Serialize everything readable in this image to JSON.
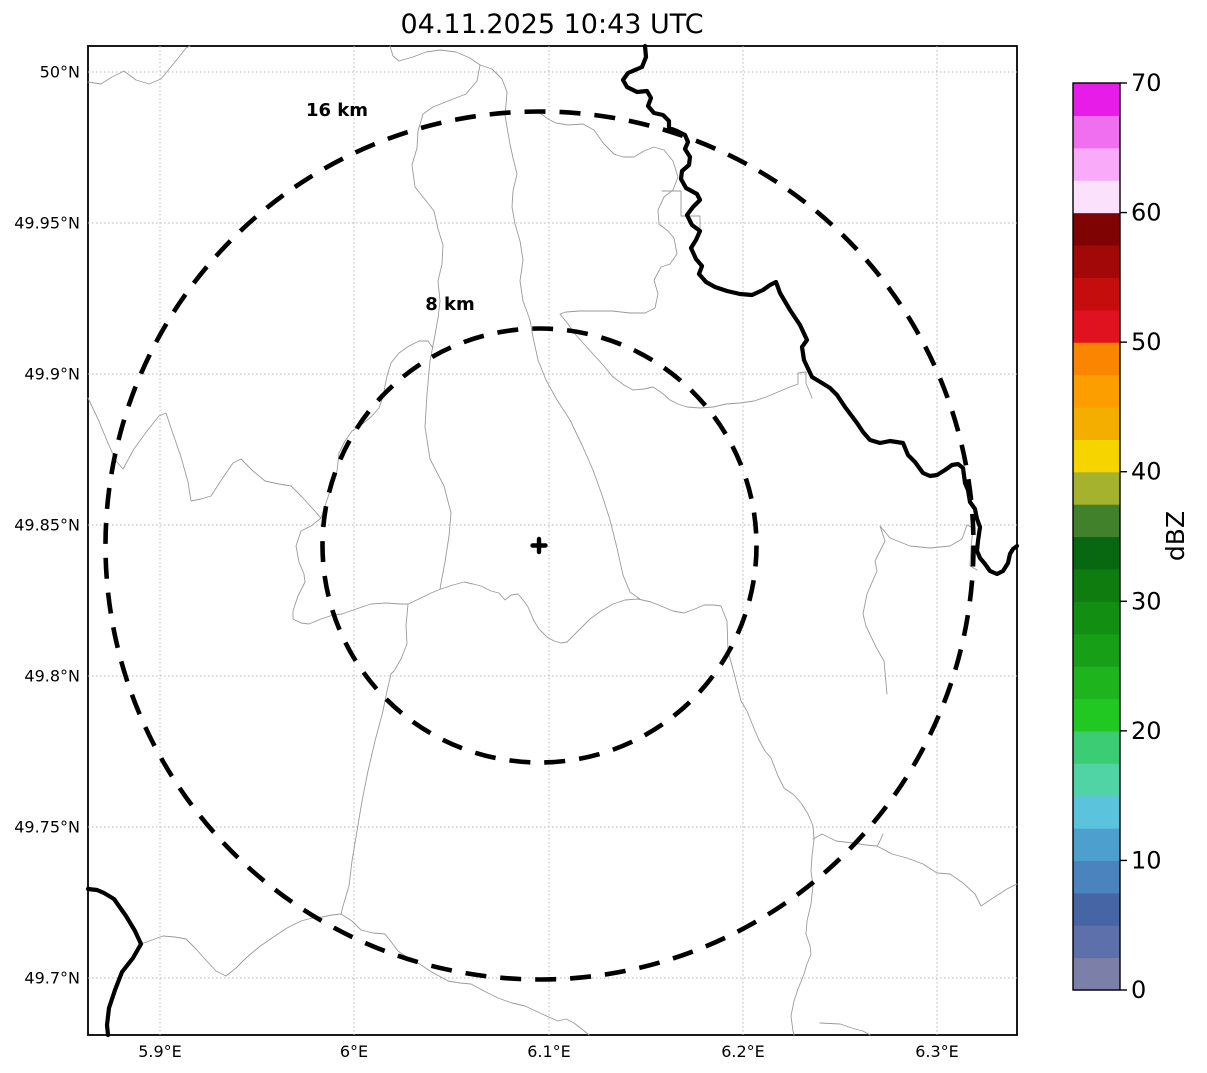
{
  "title": "04.11.2025 10:43 UTC",
  "map": {
    "projection_note": "radar range-ring map",
    "range_rings": [
      {
        "label": "16 km",
        "radius_km": 16
      },
      {
        "label": "8 km",
        "radius_km": 8
      }
    ],
    "center_marker": {
      "symbol": "+",
      "lon": "6.1°E(approx)",
      "lat": "49.843°N(approx)"
    },
    "x_axis": {
      "ticks": [
        "5.9°E",
        "6°E",
        "6.1°E",
        "6.2°E",
        "6.3°E"
      ]
    },
    "y_axis": {
      "ticks": [
        "50°N",
        "49.95°N",
        "49.9°N",
        "49.85°N",
        "49.8°N",
        "49.75°N",
        "49.7°N"
      ]
    },
    "colors": {
      "national_border": "#000000",
      "admin_boundaries": "#9a9a9a",
      "grid": "#b5b5b5",
      "range_ring": "#000000",
      "background": "#ffffff"
    }
  },
  "colorbar": {
    "unit_label": "dBZ",
    "min": 0,
    "max": 70,
    "segment_step": 2.5,
    "tick_labels": [
      "0",
      "10",
      "20",
      "30",
      "40",
      "50",
      "60",
      "70"
    ],
    "colors_bottom_to_top": [
      "#7c80a8",
      "#5e70ac",
      "#4565a5",
      "#4a83bd",
      "#4da0ce",
      "#5cc3dc",
      "#50d3a5",
      "#3ccd74",
      "#22c822",
      "#1db41d",
      "#17a017",
      "#128e12",
      "#0e7c0e",
      "#086811",
      "#41812b",
      "#a5b22d",
      "#f6d400",
      "#f4ae00",
      "#fc9d00",
      "#fb8500",
      "#e01220",
      "#c50d0d",
      "#a30808",
      "#7f0303",
      "#fce1fc",
      "#f9aaf9",
      "#f06ef0",
      "#e81ce8"
    ]
  }
}
